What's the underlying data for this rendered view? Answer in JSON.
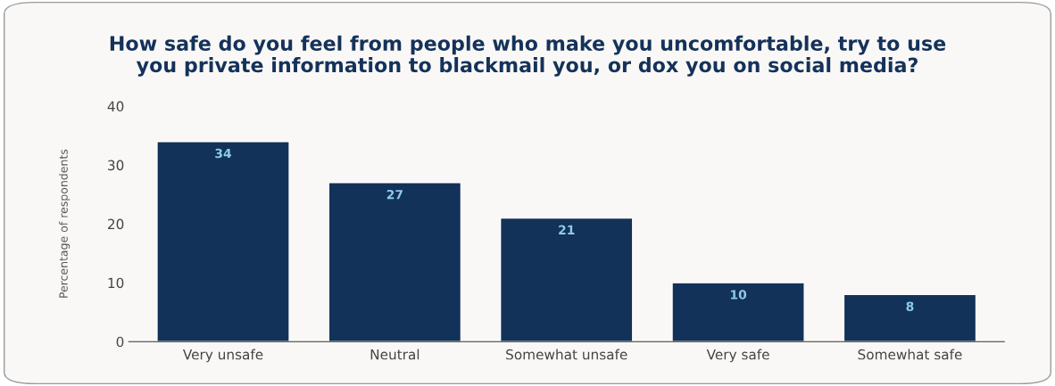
{
  "chart_data": {
    "type": "bar",
    "title": "How safe do you feel from people who make you uncomfortable, try to use\nyou private information to blackmail you, or dox you on social media?",
    "ylabel": "Percentage of respondents",
    "categories": [
      "Very unsafe",
      "Neutral",
      "Somewhat unsafe",
      "Very safe",
      "Somewhat safe"
    ],
    "values": [
      34,
      27,
      21,
      10,
      8
    ],
    "color": "#133259",
    "ylim": [
      0,
      40
    ],
    "yticks": [
      0,
      10,
      20,
      30,
      40
    ],
    "grid": false,
    "data_labels": true
  }
}
